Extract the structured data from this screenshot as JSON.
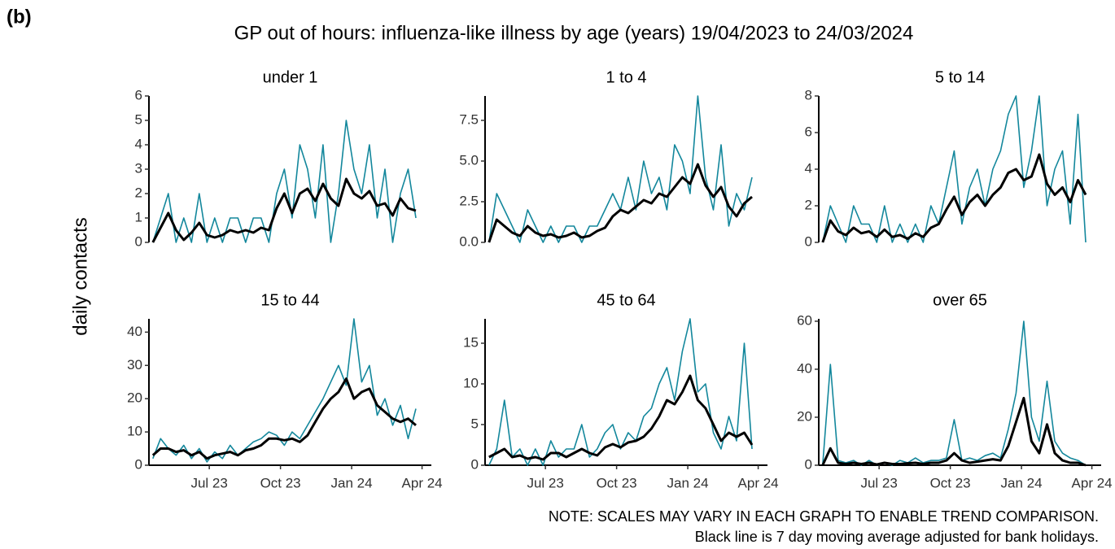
{
  "label": "(b)",
  "title": "GP out of hours: influenza-like illness by age (years) 19/04/2023 to 24/03/2024",
  "y_label": "daily contacts",
  "notes": [
    "NOTE: SCALES MAY VARY IN EACH GRAPH TO ENABLE TREND COMPARISON.",
    "Black line is 7 day moving average adjusted for bank holidays."
  ],
  "chart_data": [
    {
      "type": "line",
      "title": "under 1",
      "x": [
        "2023-04-19",
        "2023-04-29",
        "2023-05-09",
        "2023-05-19",
        "2023-05-29",
        "2023-06-08",
        "2023-06-18",
        "2023-06-28",
        "2023-07-08",
        "2023-07-18",
        "2023-07-28",
        "2023-08-07",
        "2023-08-17",
        "2023-08-27",
        "2023-09-06",
        "2023-09-16",
        "2023-09-26",
        "2023-10-06",
        "2023-10-16",
        "2023-10-26",
        "2023-11-05",
        "2023-11-15",
        "2023-11-25",
        "2023-12-05",
        "2023-12-15",
        "2023-12-25",
        "2024-01-04",
        "2024-01-14",
        "2024-01-24",
        "2024-02-03",
        "2024-02-13",
        "2024-02-23",
        "2024-03-04",
        "2024-03-14",
        "2024-03-24"
      ],
      "series": [
        {
          "color": "#13879c",
          "values": [
            0,
            1,
            2,
            0,
            1,
            0,
            2,
            0,
            1,
            0,
            1,
            1,
            0,
            1,
            1,
            0,
            2,
            3,
            1,
            4,
            3,
            1,
            4,
            0,
            2,
            5,
            3,
            2,
            4,
            1,
            3,
            0,
            2,
            3,
            1
          ]
        },
        {
          "color": "#000000",
          "values": [
            0,
            0.6,
            1.2,
            0.5,
            0.1,
            0.4,
            0.8,
            0.3,
            0.2,
            0.3,
            0.5,
            0.4,
            0.5,
            0.4,
            0.6,
            0.5,
            1.4,
            2.0,
            1.2,
            2.0,
            2.2,
            1.7,
            2.4,
            1.8,
            1.5,
            2.6,
            2.0,
            1.8,
            2.1,
            1.5,
            1.6,
            1.1,
            1.8,
            1.4,
            1.3
          ]
        }
      ],
      "xlim": [
        "2023-04-14",
        "2024-04-13"
      ],
      "ylim": [
        0,
        6
      ],
      "yticks": [
        0,
        1,
        2,
        3,
        4,
        5,
        6
      ]
    },
    {
      "type": "line",
      "title": "1 to 4",
      "x": [
        "2023-04-19",
        "2023-04-29",
        "2023-05-09",
        "2023-05-19",
        "2023-05-29",
        "2023-06-08",
        "2023-06-18",
        "2023-06-28",
        "2023-07-08",
        "2023-07-18",
        "2023-07-28",
        "2023-08-07",
        "2023-08-17",
        "2023-08-27",
        "2023-09-06",
        "2023-09-16",
        "2023-09-26",
        "2023-10-06",
        "2023-10-16",
        "2023-10-26",
        "2023-11-05",
        "2023-11-15",
        "2023-11-25",
        "2023-12-05",
        "2023-12-15",
        "2023-12-25",
        "2024-01-04",
        "2024-01-14",
        "2024-01-24",
        "2024-02-03",
        "2024-02-13",
        "2024-02-23",
        "2024-03-04",
        "2024-03-14",
        "2024-03-24"
      ],
      "series": [
        {
          "color": "#13879c",
          "values": [
            0,
            3,
            2,
            1,
            0,
            2,
            1,
            0,
            1,
            0,
            1,
            1,
            0,
            1,
            1,
            2,
            3,
            2,
            4,
            2,
            5,
            3,
            4,
            2,
            6,
            5,
            3,
            9,
            4,
            2,
            6,
            1,
            3,
            2,
            4
          ]
        },
        {
          "color": "#000000",
          "values": [
            0,
            1.4,
            1.0,
            0.6,
            0.4,
            1.0,
            0.6,
            0.4,
            0.5,
            0.3,
            0.4,
            0.6,
            0.3,
            0.4,
            0.7,
            0.9,
            1.6,
            2.0,
            1.8,
            2.2,
            2.6,
            2.4,
            3.0,
            2.8,
            3.4,
            4.0,
            3.6,
            4.8,
            3.5,
            2.8,
            3.4,
            2.2,
            1.6,
            2.4,
            2.8
          ]
        }
      ],
      "xlim": [
        "2023-04-14",
        "2024-04-13"
      ],
      "ylim": [
        0,
        9
      ],
      "yticks": [
        {
          "value": 0,
          "label": "0.0"
        },
        {
          "value": 2.5,
          "label": "2.5"
        },
        {
          "value": 5,
          "label": "5.0"
        },
        {
          "value": 7.5,
          "label": "7.5"
        }
      ]
    },
    {
      "type": "line",
      "title": "5 to 14",
      "x": [
        "2023-04-19",
        "2023-04-29",
        "2023-05-09",
        "2023-05-19",
        "2023-05-29",
        "2023-06-08",
        "2023-06-18",
        "2023-06-28",
        "2023-07-08",
        "2023-07-18",
        "2023-07-28",
        "2023-08-07",
        "2023-08-17",
        "2023-08-27",
        "2023-09-06",
        "2023-09-16",
        "2023-09-26",
        "2023-10-06",
        "2023-10-16",
        "2023-10-26",
        "2023-11-05",
        "2023-11-15",
        "2023-11-25",
        "2023-12-05",
        "2023-12-15",
        "2023-12-25",
        "2024-01-04",
        "2024-01-14",
        "2024-01-24",
        "2024-02-03",
        "2024-02-13",
        "2024-02-23",
        "2024-03-04",
        "2024-03-14",
        "2024-03-24"
      ],
      "series": [
        {
          "color": "#13879c",
          "values": [
            0,
            2,
            1,
            0,
            2,
            1,
            1,
            0,
            2,
            0,
            1,
            0,
            1,
            0,
            2,
            1,
            3,
            5,
            1,
            3,
            4,
            2,
            4,
            5,
            7,
            8,
            3,
            5,
            8,
            2,
            4,
            5,
            1,
            7,
            0
          ]
        },
        {
          "color": "#000000",
          "values": [
            0,
            1.2,
            0.6,
            0.4,
            0.8,
            0.5,
            0.6,
            0.3,
            0.7,
            0.3,
            0.4,
            0.2,
            0.5,
            0.3,
            0.8,
            1.0,
            1.8,
            2.5,
            1.5,
            2.2,
            2.6,
            2.0,
            2.6,
            3.0,
            3.8,
            4.0,
            3.4,
            3.6,
            4.8,
            3.2,
            2.6,
            3.0,
            2.2,
            3.4,
            2.6
          ]
        }
      ],
      "xlim": [
        "2023-04-14",
        "2024-04-13"
      ],
      "ylim": [
        0,
        8
      ],
      "yticks": [
        0,
        2,
        4,
        6,
        8
      ]
    },
    {
      "type": "line",
      "title": "15 to 44",
      "x": [
        "2023-04-19",
        "2023-04-29",
        "2023-05-09",
        "2023-05-19",
        "2023-05-29",
        "2023-06-08",
        "2023-06-18",
        "2023-06-28",
        "2023-07-08",
        "2023-07-18",
        "2023-07-28",
        "2023-08-07",
        "2023-08-17",
        "2023-08-27",
        "2023-09-06",
        "2023-09-16",
        "2023-09-26",
        "2023-10-06",
        "2023-10-16",
        "2023-10-26",
        "2023-11-05",
        "2023-11-15",
        "2023-11-25",
        "2023-12-05",
        "2023-12-15",
        "2023-12-25",
        "2024-01-04",
        "2024-01-14",
        "2024-01-24",
        "2024-02-03",
        "2024-02-13",
        "2024-02-23",
        "2024-03-04",
        "2024-03-14",
        "2024-03-24"
      ],
      "series": [
        {
          "color": "#13879c",
          "values": [
            2,
            8,
            5,
            3,
            6,
            2,
            5,
            1,
            4,
            2,
            6,
            3,
            5,
            7,
            8,
            10,
            9,
            6,
            10,
            8,
            12,
            16,
            20,
            25,
            30,
            24,
            44,
            25,
            30,
            15,
            20,
            12,
            18,
            8,
            17
          ]
        },
        {
          "color": "#000000",
          "values": [
            3,
            5,
            5,
            4,
            4.5,
            3,
            4,
            2,
            3,
            3.5,
            4,
            3,
            4.5,
            5,
            6,
            8,
            8,
            7.5,
            8,
            7,
            9,
            13,
            17,
            20,
            22,
            26,
            20,
            22,
            23,
            18,
            16,
            14,
            13,
            14,
            12
          ]
        }
      ],
      "xlim": [
        "2023-04-14",
        "2024-04-13"
      ],
      "ylim": [
        0,
        44
      ],
      "yticks": [
        0,
        10,
        20,
        30,
        40
      ],
      "xticks": [
        {
          "value": "2023-07-01",
          "label": "Jul 23"
        },
        {
          "value": "2023-10-01",
          "label": "Oct 23"
        },
        {
          "value": "2024-01-01",
          "label": "Jan 24"
        },
        {
          "value": "2024-04-01",
          "label": "Apr 24"
        }
      ]
    },
    {
      "type": "line",
      "title": "45 to 64",
      "x": [
        "2023-04-19",
        "2023-04-29",
        "2023-05-09",
        "2023-05-19",
        "2023-05-29",
        "2023-06-08",
        "2023-06-18",
        "2023-06-28",
        "2023-07-08",
        "2023-07-18",
        "2023-07-28",
        "2023-08-07",
        "2023-08-17",
        "2023-08-27",
        "2023-09-06",
        "2023-09-16",
        "2023-09-26",
        "2023-10-06",
        "2023-10-16",
        "2023-10-26",
        "2023-11-05",
        "2023-11-15",
        "2023-11-25",
        "2023-12-05",
        "2023-12-15",
        "2023-12-25",
        "2024-01-04",
        "2024-01-14",
        "2024-01-24",
        "2024-02-03",
        "2024-02-13",
        "2024-02-23",
        "2024-03-04",
        "2024-03-14",
        "2024-03-24"
      ],
      "series": [
        {
          "color": "#13879c",
          "values": [
            0,
            2,
            8,
            1,
            2,
            0,
            2,
            0,
            3,
            1,
            2,
            2,
            5,
            1,
            2,
            4,
            5,
            2,
            4,
            3,
            6,
            7,
            10,
            12,
            8,
            14,
            18,
            9,
            10,
            4,
            2,
            6,
            3,
            15,
            2
          ]
        },
        {
          "color": "#000000",
          "values": [
            1,
            1.5,
            2,
            1,
            1.2,
            0.8,
            1,
            0.7,
            1.5,
            1.5,
            1,
            1.5,
            2,
            1.5,
            1.2,
            2.2,
            2.6,
            2.2,
            2.8,
            3,
            3.5,
            4.5,
            6,
            8,
            7.5,
            9,
            11,
            8,
            7,
            5,
            3,
            4,
            3.5,
            4,
            2.5
          ]
        }
      ],
      "xlim": [
        "2023-04-14",
        "2024-04-13"
      ],
      "ylim": [
        0,
        18
      ],
      "yticks": [
        0,
        5,
        10,
        15
      ],
      "xticks": [
        {
          "value": "2023-07-01",
          "label": "Jul 23"
        },
        {
          "value": "2023-10-01",
          "label": "Oct 23"
        },
        {
          "value": "2024-01-01",
          "label": "Jan 24"
        },
        {
          "value": "2024-04-01",
          "label": "Apr 24"
        }
      ]
    },
    {
      "type": "line",
      "title": "over 65",
      "x": [
        "2023-04-19",
        "2023-04-29",
        "2023-05-09",
        "2023-05-19",
        "2023-05-29",
        "2023-06-08",
        "2023-06-18",
        "2023-06-28",
        "2023-07-08",
        "2023-07-18",
        "2023-07-28",
        "2023-08-07",
        "2023-08-17",
        "2023-08-27",
        "2023-09-06",
        "2023-09-16",
        "2023-09-26",
        "2023-10-06",
        "2023-10-16",
        "2023-10-26",
        "2023-11-05",
        "2023-11-15",
        "2023-11-25",
        "2023-12-05",
        "2023-12-15",
        "2023-12-25",
        "2024-01-04",
        "2024-01-14",
        "2024-01-24",
        "2024-02-03",
        "2024-02-13",
        "2024-02-23",
        "2024-03-04",
        "2024-03-14",
        "2024-03-24"
      ],
      "series": [
        {
          "color": "#13879c",
          "values": [
            0,
            42,
            2,
            1,
            2,
            0,
            2,
            0,
            1,
            0,
            2,
            1,
            3,
            1,
            2,
            2,
            3,
            19,
            2,
            3,
            2,
            4,
            5,
            3,
            15,
            30,
            60,
            20,
            10,
            35,
            10,
            5,
            3,
            2,
            0
          ]
        },
        {
          "color": "#000000",
          "values": [
            0,
            7,
            1,
            0.5,
            1,
            0.5,
            1,
            0.3,
            1,
            0.5,
            0.5,
            0.8,
            1,
            0.5,
            1,
            1,
            2,
            5,
            2,
            1,
            1.5,
            2,
            2.5,
            2,
            8,
            18,
            28,
            10,
            5,
            17,
            5,
            2,
            1,
            1,
            0
          ]
        }
      ],
      "xlim": [
        "2023-04-14",
        "2024-04-13"
      ],
      "ylim": [
        0,
        61
      ],
      "yticks": [
        0,
        20,
        40,
        60
      ],
      "xticks": [
        {
          "value": "2023-07-01",
          "label": "Jul 23"
        },
        {
          "value": "2023-10-01",
          "label": "Oct 23"
        },
        {
          "value": "2024-01-01",
          "label": "Jan 24"
        },
        {
          "value": "2024-04-01",
          "label": "Apr 24"
        }
      ]
    }
  ]
}
